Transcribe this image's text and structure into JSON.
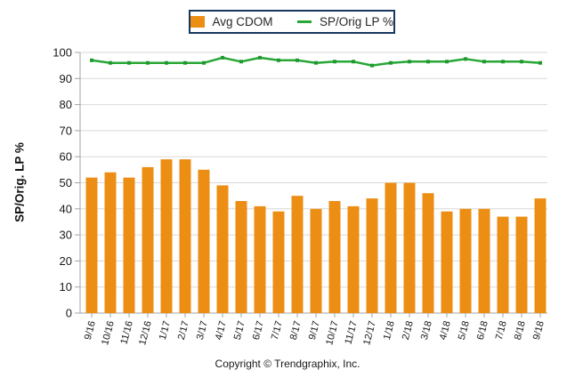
{
  "legend": {
    "bar_label": "Avg CDOM",
    "line_label": "SP/Orig LP %"
  },
  "y_axis": {
    "title": "SP/Orig. LP %"
  },
  "footer": {
    "copyright": "Copyright © Trendgraphix, Inc."
  },
  "colors": {
    "bar": "#ED8E14",
    "line": "#28A737",
    "marker": "#1E9A2E",
    "legend_border": "#17375E",
    "gridline": "#D9D9D9",
    "axis": "#A3A3A3",
    "tick": "#A3A3A3",
    "label_text": "#1a1a1a"
  },
  "chart_data": {
    "type": "bar",
    "note": "combo chart: bar series + line series on shared % axis",
    "categories": [
      "9/16",
      "10/16",
      "11/16",
      "12/16",
      "1/17",
      "2/17",
      "3/17",
      "4/17",
      "5/17",
      "6/17",
      "7/17",
      "8/17",
      "9/17",
      "10/17",
      "11/17",
      "12/17",
      "1/18",
      "2/18",
      "3/18",
      "4/18",
      "5/18",
      "6/18",
      "7/18",
      "8/18",
      "9/18"
    ],
    "series": [
      {
        "name": "Avg CDOM",
        "type": "bar",
        "values": [
          52,
          54,
          52,
          56,
          59,
          59,
          55,
          49,
          43,
          41,
          39,
          45,
          40,
          43,
          41,
          44,
          50,
          50,
          46,
          39,
          40,
          40,
          37,
          37,
          44
        ]
      },
      {
        "name": "SP/Orig LP %",
        "type": "line",
        "values": [
          97,
          96,
          96,
          96,
          96,
          96,
          96,
          98,
          96.5,
          98,
          97,
          97,
          96,
          96.5,
          96.5,
          95,
          96,
          96.5,
          96.5,
          96.5,
          97.5,
          96.5,
          96.5,
          96.5,
          96
        ]
      }
    ],
    "title": "",
    "xlabel": "",
    "ylabel": "SP/Orig. LP %",
    "ylim": [
      0,
      100
    ],
    "ytick_step": 10,
    "grid": true,
    "legend_position": "top-center"
  }
}
